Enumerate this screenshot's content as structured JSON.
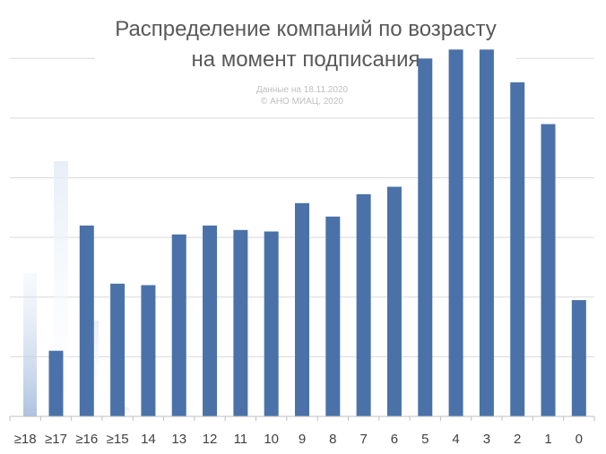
{
  "chart_data": {
    "type": "bar",
    "title": [
      "Распределение компаний по возрасту",
      "на момент подписания"
    ],
    "note": [
      "Данные на 18.11.2020",
      "© АНО МИАЦ, 2020"
    ],
    "categories": [
      "≥18",
      "≥17",
      "≥16",
      "≥15",
      "14",
      "13",
      "12",
      "11",
      "10",
      "9",
      "8",
      "7",
      "6",
      "5",
      "4",
      "3",
      "2",
      "1",
      "0"
    ],
    "values": [
      0,
      22,
      64,
      44.5,
      44,
      61,
      64,
      62.5,
      62,
      71.5,
      67,
      74.5,
      77,
      120,
      123,
      123,
      112,
      98,
      39
    ],
    "ylim": [
      0,
      130
    ],
    "ylabel": "",
    "xlabel": "",
    "grid": true,
    "bar_color": "#4a72a9",
    "grid_color": "#d9d9d9",
    "axis_color": "#bfbfbf"
  }
}
